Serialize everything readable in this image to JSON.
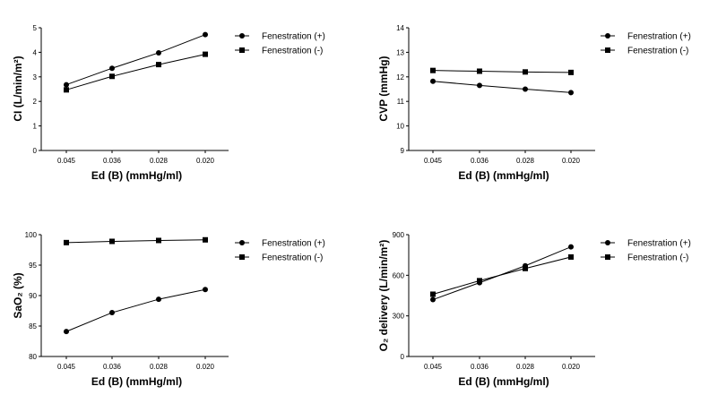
{
  "chart_data": [
    {
      "type": "line",
      "xlabel": "Ed (B) (mmHg/ml)",
      "ylabel": "CI (L/min/m²)",
      "categories": [
        "0.045",
        "0.036",
        "0.028",
        "0.020"
      ],
      "ylim": [
        0,
        5
      ],
      "yticks": [
        0,
        1,
        2,
        3,
        4,
        5
      ],
      "grid": false,
      "legend": "top-right",
      "series": [
        {
          "name": "Fenestration (+)",
          "marker": "circle",
          "values": [
            2.68,
            3.35,
            3.98,
            4.72
          ]
        },
        {
          "name": "Fenestration (-)",
          "marker": "square",
          "values": [
            2.47,
            3.02,
            3.5,
            3.92
          ]
        }
      ]
    },
    {
      "type": "line",
      "xlabel": "Ed (B) (mmHg/ml)",
      "ylabel": "CVP (mmHg)",
      "categories": [
        "0.045",
        "0.036",
        "0.028",
        "0.020"
      ],
      "ylim": [
        9,
        14
      ],
      "yticks": [
        9,
        10,
        11,
        12,
        13,
        14
      ],
      "grid": false,
      "legend": "top-right",
      "series": [
        {
          "name": "Fenestration (+)",
          "marker": "circle",
          "values": [
            11.82,
            11.65,
            11.5,
            11.36
          ]
        },
        {
          "name": "Fenestration (-)",
          "marker": "square",
          "values": [
            12.26,
            12.23,
            12.2,
            12.18
          ]
        }
      ]
    },
    {
      "type": "line",
      "xlabel": "Ed (B) (mmHg/ml)",
      "ylabel": "SaO₂ (%)",
      "categories": [
        "0.045",
        "0.036",
        "0.028",
        "0.020"
      ],
      "ylim": [
        80,
        100
      ],
      "yticks": [
        80,
        85,
        90,
        95,
        100
      ],
      "grid": false,
      "legend": "top-right",
      "series": [
        {
          "name": "Fenestration (+)",
          "marker": "circle",
          "values": [
            84.1,
            87.2,
            89.4,
            91.0
          ]
        },
        {
          "name": "Fenestration (-)",
          "marker": "square",
          "values": [
            98.7,
            98.9,
            99.05,
            99.15
          ]
        }
      ]
    },
    {
      "type": "line",
      "xlabel": "Ed (B) (mmHg/ml)",
      "ylabel": "O₂ delivery (L/min/m²)",
      "categories": [
        "0.045",
        "0.036",
        "0.028",
        "0.020"
      ],
      "ylim": [
        0,
        900
      ],
      "yticks": [
        0,
        300,
        600,
        900
      ],
      "grid": false,
      "legend": "top-right",
      "series": [
        {
          "name": "Fenestration (+)",
          "marker": "circle",
          "values": [
            420,
            545,
            670,
            810
          ]
        },
        {
          "name": "Fenestration (-)",
          "marker": "square",
          "values": [
            460,
            560,
            650,
            735
          ]
        }
      ]
    }
  ]
}
